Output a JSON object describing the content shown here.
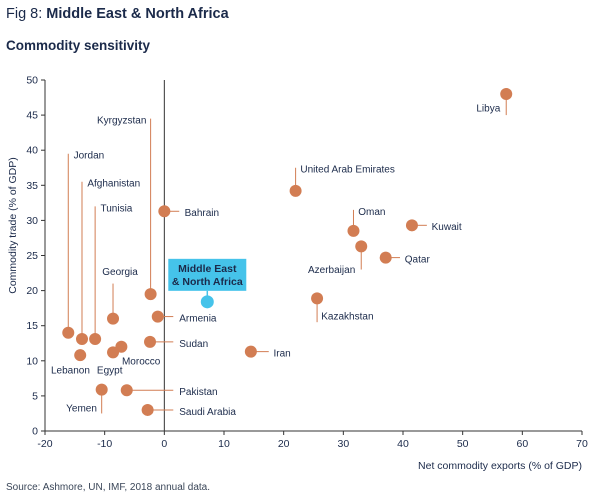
{
  "header": {
    "fig_prefix": "Fig 8: ",
    "fig_title": "Middle East & North Africa",
    "subtitle": "Commodity sensitivity"
  },
  "footer": {
    "source": "Source: Ashmore, UN, IMF, 2018 annual data."
  },
  "colors": {
    "point": "#d27d53",
    "highlight": "#45c3ea",
    "text": "#1b2a4a",
    "leader": "#d27d53",
    "axis": "#333333"
  },
  "chart_data": {
    "type": "scatter",
    "xlabel": "Net commodity exports (% of GDP)",
    "ylabel": "Commodity trade (% of GDP)",
    "xlim": [
      -20,
      70
    ],
    "ylim": [
      0,
      50
    ],
    "xticks": [
      "-20",
      "-10",
      "0",
      "10",
      "20",
      "30",
      "40",
      "50",
      "60",
      "70"
    ],
    "yticks": [
      "0",
      "5",
      "10",
      "15",
      "20",
      "25",
      "30",
      "35",
      "40",
      "45",
      "50"
    ],
    "grid": false,
    "points": [
      {
        "label": "Libya",
        "x": 57.3,
        "y": 48,
        "lx": 57.3,
        "ly": 45,
        "anchor": "end",
        "tx": 56.3,
        "ty": 45.5
      },
      {
        "label": "Kyrgyzstan",
        "x": -2.3,
        "y": 19.5,
        "lx": -2.3,
        "ly": 44.5,
        "anchor": "end",
        "tx": -3,
        "ty": 43.8
      },
      {
        "label": "Jordan",
        "x": -16.1,
        "y": 14,
        "lx": -16.1,
        "ly": 39.5,
        "anchor": "start",
        "tx": -15.2,
        "ty": 38.8
      },
      {
        "label": "United Arab Emirates",
        "x": 22,
        "y": 34.2,
        "lx": 22,
        "ly": 37.5,
        "anchor": "start",
        "tx": 22.8,
        "ty": 36.8
      },
      {
        "label": "Afghanistan",
        "x": -13.8,
        "y": 13.1,
        "lx": -13.8,
        "ly": 35.5,
        "anchor": "start",
        "tx": -12.9,
        "ty": 34.8
      },
      {
        "label": "Tunisia",
        "x": -11.6,
        "y": 13.1,
        "lx": -11.6,
        "ly": 32,
        "anchor": "start",
        "tx": -10.7,
        "ty": 31.3
      },
      {
        "label": "Bahrain",
        "x": 0,
        "y": 31.3,
        "lx": 2.5,
        "ly": 31.3,
        "anchor": "start",
        "tx": 3.4,
        "ty": 30.6
      },
      {
        "label": "Oman",
        "x": 31.7,
        "y": 28.5,
        "lx": 31.7,
        "ly": 31.5,
        "anchor": "start",
        "tx": 32.5,
        "ty": 30.8
      },
      {
        "label": "Kuwait",
        "x": 41.5,
        "y": 29.3,
        "lx": 44,
        "ly": 29.3,
        "anchor": "start",
        "tx": 44.8,
        "ty": 28.6
      },
      {
        "label": "Azerbaijan",
        "x": 33,
        "y": 26.3,
        "lx": 33,
        "ly": 23,
        "anchor": "end",
        "tx": 32,
        "ty": 22.5
      },
      {
        "label": "Qatar",
        "x": 37.1,
        "y": 24.7,
        "lx": 39.5,
        "ly": 24.7,
        "anchor": "start",
        "tx": 40.3,
        "ty": 24
      },
      {
        "label": "Georgia",
        "x": -8.6,
        "y": 16,
        "lx": -8.6,
        "ly": 21,
        "anchor": "start",
        "tx": -10.4,
        "ty": 22.2
      },
      {
        "label": "Kazakhstan",
        "x": 25.6,
        "y": 18.9,
        "lx": 25.6,
        "ly": 15.5,
        "anchor": "start",
        "tx": 26.3,
        "ty": 15.9
      },
      {
        "label": "Armenia",
        "x": -1.1,
        "y": 16.3,
        "lx": 1.5,
        "ly": 16.3,
        "anchor": "start",
        "tx": 2.5,
        "ty": 15.6
      },
      {
        "label": "Sudan",
        "x": -2.4,
        "y": 12.7,
        "lx": 1.5,
        "ly": 12.7,
        "anchor": "start",
        "tx": 2.5,
        "ty": 12
      },
      {
        "label": "Iran",
        "x": 14.5,
        "y": 11.3,
        "lx": 17.5,
        "ly": 11.3,
        "anchor": "start",
        "tx": 18.3,
        "ty": 10.6
      },
      {
        "label": "Morocco",
        "x": -7.2,
        "y": 12,
        "lx": -7.2,
        "ly": 12,
        "anchor": "start",
        "tx": -7.1,
        "ty": 9.5
      },
      {
        "label": "Egypt",
        "x": -8.6,
        "y": 11.2,
        "lx": -8.6,
        "ly": 11.2,
        "anchor": "start",
        "tx": -11.3,
        "ty": 8.2
      },
      {
        "label": "Lebanon",
        "x": -14.1,
        "y": 10.8,
        "lx": -14.1,
        "ly": 10.8,
        "anchor": "start",
        "tx": -19,
        "ty": 8.2
      },
      {
        "label": "Pakistan",
        "x": -6.3,
        "y": 5.8,
        "lx": 1.5,
        "ly": 5.8,
        "anchor": "start",
        "tx": 2.5,
        "ty": 5.1
      },
      {
        "label": "Yemen",
        "x": -10.5,
        "y": 5.9,
        "lx": -10.5,
        "ly": 2.5,
        "anchor": "end",
        "tx": -11.3,
        "ty": 2.8
      },
      {
        "label": "Saudi Arabia",
        "x": -2.8,
        "y": 3,
        "lx": 1.5,
        "ly": 3,
        "anchor": "start",
        "tx": 2.5,
        "ty": 2.3
      }
    ],
    "highlight": {
      "label_line1": "Middle East",
      "label_line2": "& North Africa",
      "x": 7.2,
      "y": 18.4
    }
  }
}
